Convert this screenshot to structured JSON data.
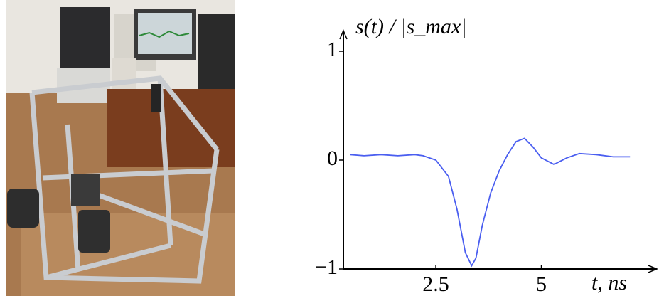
{
  "chart_data": {
    "type": "line",
    "y_label": "s(t) / |s_max|",
    "x_label": "t, ns",
    "x": [
      0.47,
      0.8,
      1.2,
      1.6,
      2.0,
      2.2,
      2.5,
      2.8,
      3.0,
      3.2,
      3.35,
      3.45,
      3.6,
      3.8,
      4.0,
      4.2,
      4.4,
      4.6,
      4.8,
      5.0,
      5.3,
      5.6,
      5.9,
      6.3,
      6.7,
      7.1
    ],
    "series": [
      {
        "color": "#4a5ef0",
        "values": [
          0.05,
          0.04,
          0.05,
          0.04,
          0.05,
          0.04,
          0.0,
          -0.15,
          -0.45,
          -0.85,
          -0.97,
          -0.9,
          -0.6,
          -0.3,
          -0.1,
          0.05,
          0.17,
          0.2,
          0.12,
          0.02,
          -0.04,
          0.02,
          0.06,
          0.05,
          0.03,
          0.03
        ]
      }
    ],
    "xlim": [
      0.31,
      7.5
    ],
    "xticks": [
      2.5,
      5
    ],
    "ylim": [
      -1,
      1
    ],
    "yticks": [
      {
        "value": -1,
        "label": "−1"
      },
      0,
      1
    ]
  }
}
